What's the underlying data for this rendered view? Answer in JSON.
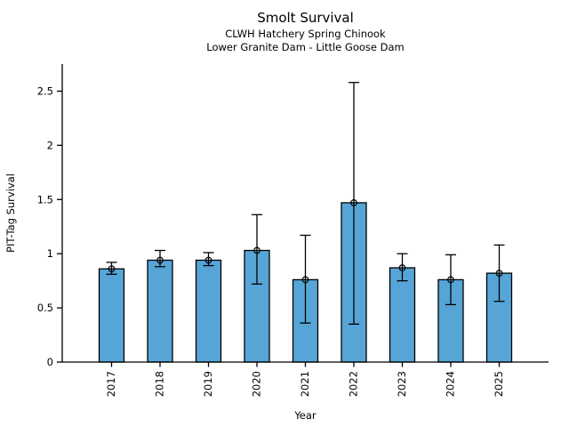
{
  "chart_data": {
    "type": "bar",
    "title": "Smolt Survival",
    "subtitle1": "CLWH Hatchery Spring Chinook",
    "subtitle2": "Lower Granite Dam - Little Goose Dam",
    "xlabel": "Year",
    "ylabel": "PIT-Tag Survival",
    "categories": [
      "2017",
      "2018",
      "2019",
      "2020",
      "2021",
      "2022",
      "2023",
      "2024",
      "2025"
    ],
    "values": [
      0.86,
      0.94,
      0.94,
      1.03,
      0.76,
      1.47,
      0.87,
      0.76,
      0.82
    ],
    "error_low": [
      0.81,
      0.88,
      0.89,
      0.72,
      0.36,
      0.35,
      0.75,
      0.53,
      0.56
    ],
    "error_high": [
      0.92,
      1.03,
      1.01,
      1.36,
      1.17,
      2.58,
      1.0,
      0.99,
      1.08
    ],
    "yticks": [
      0,
      0.5,
      1,
      1.5,
      2,
      2.5
    ],
    "ytick_labels": [
      "0",
      "0.5",
      "1",
      "1.5",
      "2",
      "2.5"
    ],
    "ylim": [
      0,
      2.75
    ],
    "grid": false,
    "legend_position": "none",
    "marker": "open-circle",
    "colors": {
      "bar_fill": "#56a5d6",
      "bar_edge": "#000000",
      "axis": "#000000",
      "text": "#000000",
      "background": "#ffffff"
    }
  }
}
